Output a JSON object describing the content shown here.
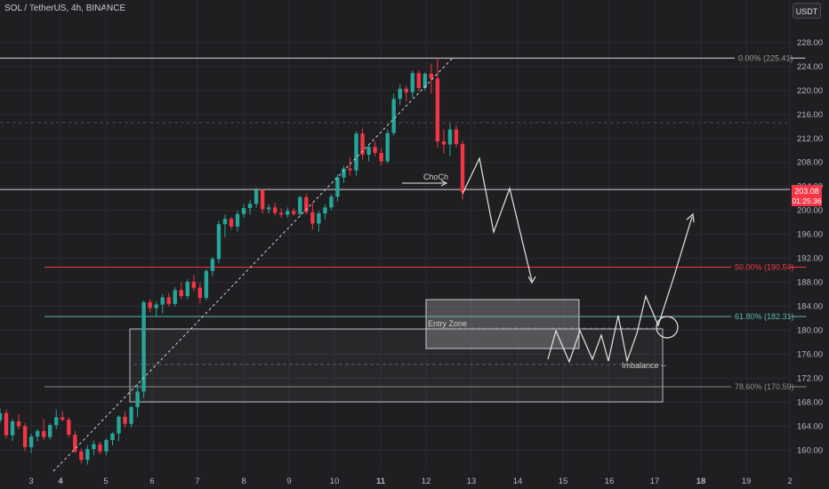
{
  "header": {
    "title": "SOL / TetherUS, 4h, BINANCE",
    "currency": "USDT"
  },
  "price_tag": {
    "value": "203.08",
    "countdown": "01:25:36",
    "color": "#f23645"
  },
  "colors": {
    "up": "#26a69a",
    "down": "#f23645",
    "fib50": "#f23645",
    "fib618": "#5fb3b3",
    "fib786": "#8a8a8a",
    "fib0": "#9a9a9a",
    "annotation": "#e6e6e6"
  },
  "annotations": {
    "choch": "ChoCh",
    "entry_zone": "Entry Zone",
    "imbalance": "Imbalance --"
  },
  "chart_data": {
    "type": "candlestick",
    "title": "SOL / TetherUS, 4h, BINANCE",
    "x_ticks": [
      "3",
      "4",
      "5",
      "6",
      "7",
      "8",
      "9",
      "10",
      "11",
      "12",
      "13",
      "14",
      "15",
      "16",
      "17",
      "18",
      "19",
      "2"
    ],
    "y_ticks": [
      160,
      164,
      168,
      172,
      176,
      180,
      184,
      188,
      192,
      196,
      200,
      204,
      208,
      212,
      216,
      220,
      224,
      228
    ],
    "ylim": [
      156.5,
      230.5
    ],
    "grid": true,
    "horizontal_levels": [
      {
        "label": "0.00% (225.41)",
        "price": 225.41
      },
      {
        "price": 203.5
      },
      {
        "label": "50.00% (190.54)",
        "price": 190.54
      },
      {
        "label": "61.80% (182.31)",
        "price": 182.31
      },
      {
        "label": "78.60% (170.59)",
        "price": 170.59
      }
    ],
    "zones": [
      {
        "label": "Entry Zone",
        "x": [
          12,
          15.3
        ],
        "price": [
          177.3,
          185.1
        ]
      },
      {
        "label": "Imbalance --",
        "x": [
          5.55,
          17.2
        ],
        "price": [
          168.2,
          180.3
        ]
      }
    ],
    "ohlc": [
      [
        165,
        167,
        164.5,
        166.2
      ],
      [
        166.2,
        166.8,
        162,
        162.5
      ],
      [
        162.5,
        165.2,
        161.5,
        164.8
      ],
      [
        164.8,
        166,
        163.5,
        164
      ],
      [
        164,
        164.5,
        159.8,
        160.5
      ],
      [
        160.5,
        162.8,
        159.5,
        162.3
      ],
      [
        162.3,
        163.5,
        161.5,
        163.2
      ],
      [
        163.2,
        165.2,
        161.7,
        162.2
      ],
      [
        162.2,
        164.5,
        161.8,
        164.2
      ],
      [
        164.2,
        166.8,
        163.5,
        165.5
      ],
      [
        165.5,
        166.5,
        164.8,
        165.1
      ],
      [
        165.1,
        165.5,
        162.1,
        162.6
      ],
      [
        162.6,
        163.2,
        159.5,
        159.8
      ],
      [
        159.8,
        160.3,
        157.8,
        158.4
      ],
      [
        158.4,
        160.8,
        157.6,
        160.2
      ],
      [
        160.2,
        161.6,
        159.2,
        161
      ],
      [
        161,
        161.4,
        159.3,
        159.8
      ],
      [
        159.8,
        162,
        159.2,
        161.7
      ],
      [
        161.7,
        163,
        160.8,
        162.8
      ],
      [
        162.8,
        165.8,
        161.5,
        165.6
      ],
      [
        165.6,
        166.5,
        163.8,
        164.4
      ],
      [
        164.4,
        167.4,
        163.8,
        167.2
      ],
      [
        167.2,
        171,
        165.5,
        169.8
      ],
      [
        169.8,
        185,
        168.7,
        184.7
      ],
      [
        184.7,
        185.2,
        183,
        183.7
      ],
      [
        183.7,
        184.8,
        182.2,
        184.3
      ],
      [
        184.3,
        186,
        182.8,
        185.5
      ],
      [
        185.5,
        186.2,
        184,
        184.4
      ],
      [
        184.4,
        187.2,
        184,
        186.7
      ],
      [
        186.7,
        188,
        185.2,
        185.7
      ],
      [
        185.7,
        188.5,
        185.2,
        188.1
      ],
      [
        188.1,
        189.2,
        186.5,
        187.1
      ],
      [
        187.1,
        188,
        184.5,
        185.4
      ],
      [
        185.4,
        190.2,
        185,
        189.9
      ],
      [
        189.9,
        192.2,
        189,
        191.9
      ],
      [
        191.9,
        198.3,
        191.2,
        197.7
      ],
      [
        197.7,
        199.3,
        195.5,
        198.6
      ],
      [
        198.6,
        198.9,
        196.8,
        197.3
      ],
      [
        197.3,
        200,
        196.5,
        199.4
      ],
      [
        199.4,
        201,
        198.8,
        200.4
      ],
      [
        200.4,
        201.8,
        199.3,
        201.1
      ],
      [
        201.1,
        203.8,
        200.5,
        203.4
      ],
      [
        203.4,
        203.6,
        199.5,
        200.2
      ],
      [
        200.2,
        201,
        199.5,
        200.5
      ],
      [
        200.5,
        201.3,
        199.2,
        199.6
      ],
      [
        199.6,
        200.4,
        198.8,
        199.3
      ],
      [
        199.3,
        200.5,
        198.8,
        199.9
      ],
      [
        199.9,
        200.4,
        199.1,
        199.4
      ],
      [
        199.4,
        202.5,
        199,
        202.2
      ],
      [
        202.2,
        202.8,
        199.3,
        199.7
      ],
      [
        199.7,
        201.2,
        196.8,
        197.8
      ],
      [
        197.8,
        199.9,
        196.5,
        199.5
      ],
      [
        199.5,
        201,
        198.5,
        200.5
      ],
      [
        200.5,
        202.7,
        200,
        202.3
      ],
      [
        202.3,
        206,
        201.5,
        205.5
      ],
      [
        205.5,
        207.4,
        204.6,
        207
      ],
      [
        207,
        208.9,
        205.8,
        206.7
      ],
      [
        206.7,
        213.2,
        205.8,
        212.8
      ],
      [
        212.8,
        213.6,
        208.5,
        209.3
      ],
      [
        209.3,
        211,
        208.2,
        210.6
      ],
      [
        210.6,
        211.5,
        209,
        209.6
      ],
      [
        209.6,
        210.4,
        207.5,
        208.2
      ],
      [
        208.2,
        213.5,
        207.9,
        212.9
      ],
      [
        212.9,
        219.5,
        212.5,
        218.6
      ],
      [
        218.6,
        221,
        217.6,
        220.3
      ],
      [
        220.3,
        220.8,
        218.2,
        219.7
      ],
      [
        219.7,
        223.3,
        218.8,
        222.9
      ],
      [
        222.9,
        223.4,
        219.9,
        220.4
      ],
      [
        220.4,
        223,
        220,
        222.8
      ],
      [
        222.8,
        224.5,
        219.5,
        222
      ],
      [
        222,
        225.4,
        210.5,
        211.5
      ],
      [
        211.5,
        213.5,
        209.5,
        211
      ],
      [
        211,
        214.5,
        209,
        213.5
      ],
      [
        213.5,
        214.2,
        210.5,
        211.1
      ],
      [
        211.1,
        211.6,
        201.8,
        203.08
      ]
    ]
  }
}
